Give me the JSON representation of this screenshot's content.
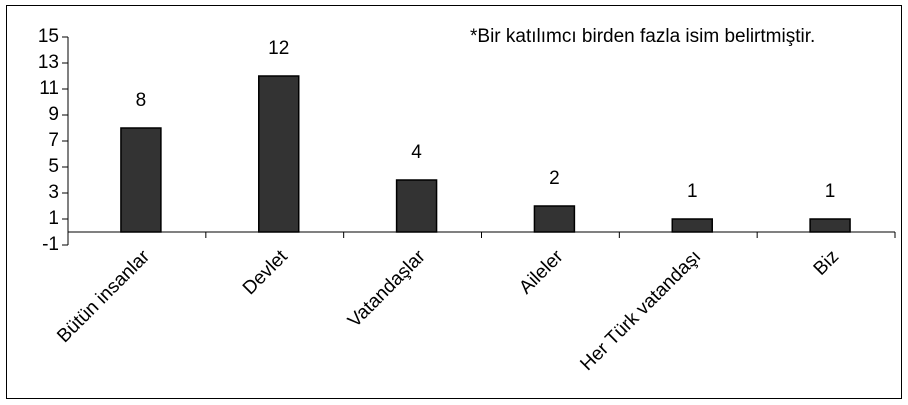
{
  "chart_data": {
    "type": "bar",
    "annotation": "*Bir katılımcı birden fazla isim belirtmiştir.",
    "categories": [
      "Bütün insanlar",
      "Devlet",
      "Vatandaşlar",
      "Aileler",
      "Her Türk vatandaşı",
      "Biz"
    ],
    "values": [
      8,
      12,
      4,
      2,
      1,
      1
    ],
    "color": "#333333",
    "ylim": [
      -1,
      15
    ],
    "yticks": [
      -1,
      1,
      3,
      5,
      7,
      9,
      11,
      13,
      15
    ],
    "data_labels": true
  }
}
